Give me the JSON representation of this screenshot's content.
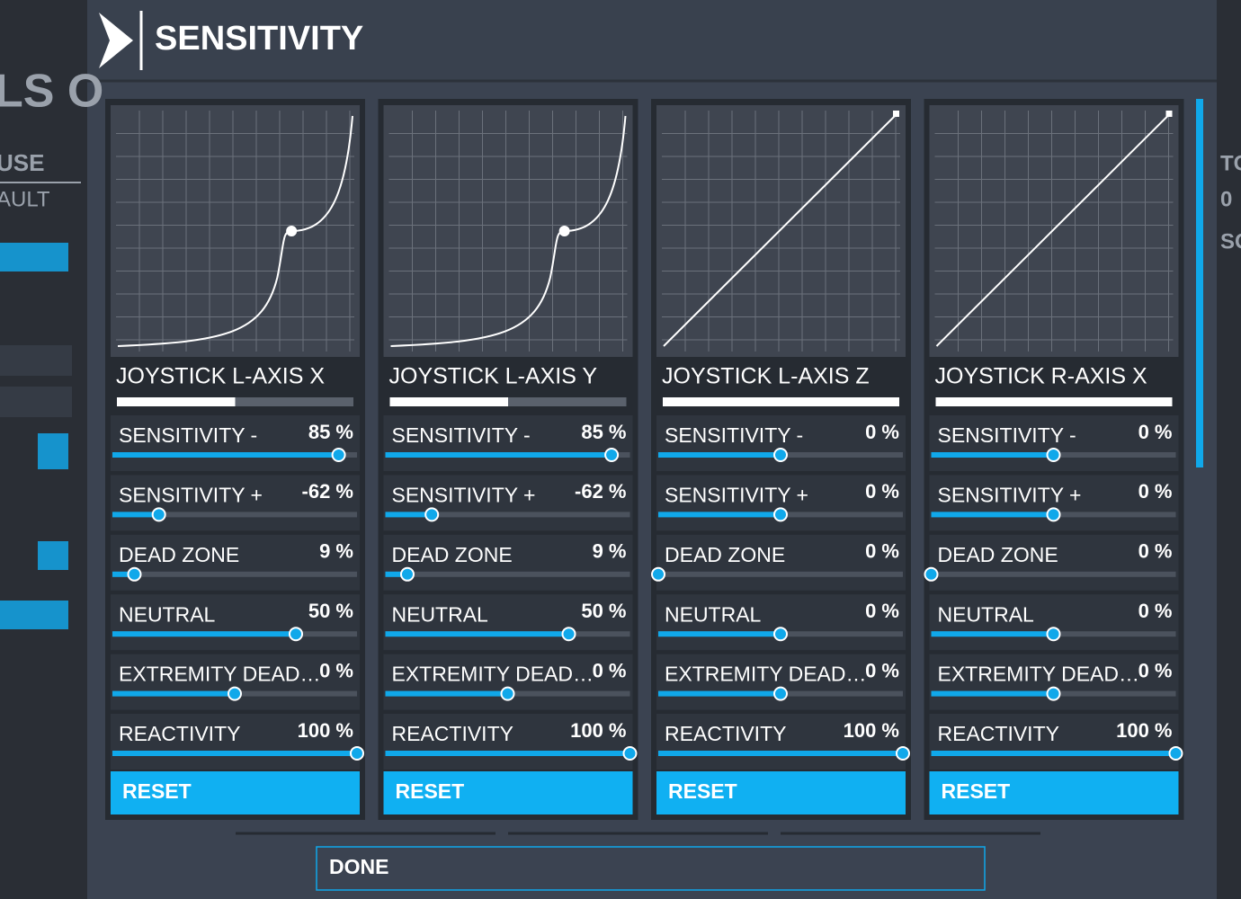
{
  "background": {
    "left_texts": [
      "LS O",
      "USE",
      "AULT"
    ],
    "right_texts": [
      "TC",
      "0",
      "SC"
    ]
  },
  "header": {
    "title": "SENSITIVITY"
  },
  "panels": [
    {
      "name": "JOYSTICK L-AXIS X",
      "input": 50,
      "settings": [
        {
          "label": "SENSITIVITY -",
          "value": 85,
          "value_label": "85 %",
          "range": [
            -100,
            100
          ]
        },
        {
          "label": "SENSITIVITY +",
          "value": -62,
          "value_label": "-62 %",
          "range": [
            -100,
            100
          ]
        },
        {
          "label": "DEAD ZONE",
          "value": 9,
          "value_label": "9 %",
          "range": [
            0,
            100
          ]
        },
        {
          "label": "NEUTRAL",
          "value": 50,
          "value_label": "50 %",
          "range": [
            -100,
            100
          ]
        },
        {
          "label": "EXTREMITY DEAD…",
          "value": 0,
          "value_label": "0 %",
          "range": [
            -100,
            100
          ]
        },
        {
          "label": "REACTIVITY",
          "value": 100,
          "value_label": "100 %",
          "range": [
            0,
            100
          ]
        }
      ],
      "reset": "RESET"
    },
    {
      "name": "JOYSTICK L-AXIS Y",
      "input": 50,
      "settings": [
        {
          "label": "SENSITIVITY -",
          "value": 85,
          "value_label": "85 %",
          "range": [
            -100,
            100
          ]
        },
        {
          "label": "SENSITIVITY +",
          "value": -62,
          "value_label": "-62 %",
          "range": [
            -100,
            100
          ]
        },
        {
          "label": "DEAD ZONE",
          "value": 9,
          "value_label": "9 %",
          "range": [
            0,
            100
          ]
        },
        {
          "label": "NEUTRAL",
          "value": 50,
          "value_label": "50 %",
          "range": [
            -100,
            100
          ]
        },
        {
          "label": "EXTREMITY DEAD…",
          "value": 0,
          "value_label": "0 %",
          "range": [
            -100,
            100
          ]
        },
        {
          "label": "REACTIVITY",
          "value": 100,
          "value_label": "100 %",
          "range": [
            0,
            100
          ]
        }
      ],
      "reset": "RESET"
    },
    {
      "name": "JOYSTICK L-AXIS Z",
      "input": 100,
      "settings": [
        {
          "label": "SENSITIVITY -",
          "value": 0,
          "value_label": "0 %",
          "range": [
            -100,
            100
          ]
        },
        {
          "label": "SENSITIVITY +",
          "value": 0,
          "value_label": "0 %",
          "range": [
            -100,
            100
          ]
        },
        {
          "label": "DEAD ZONE",
          "value": 0,
          "value_label": "0 %",
          "range": [
            0,
            100
          ]
        },
        {
          "label": "NEUTRAL",
          "value": 0,
          "value_label": "0 %",
          "range": [
            -100,
            100
          ]
        },
        {
          "label": "EXTREMITY DEAD…",
          "value": 0,
          "value_label": "0 %",
          "range": [
            -100,
            100
          ]
        },
        {
          "label": "REACTIVITY",
          "value": 100,
          "value_label": "100 %",
          "range": [
            0,
            100
          ]
        }
      ],
      "reset": "RESET"
    },
    {
      "name": "JOYSTICK R-AXIS X",
      "input": 100,
      "settings": [
        {
          "label": "SENSITIVITY -",
          "value": 0,
          "value_label": "0 %",
          "range": [
            -100,
            100
          ]
        },
        {
          "label": "SENSITIVITY +",
          "value": 0,
          "value_label": "0 %",
          "range": [
            -100,
            100
          ]
        },
        {
          "label": "DEAD ZONE",
          "value": 0,
          "value_label": "0 %",
          "range": [
            0,
            100
          ]
        },
        {
          "label": "NEUTRAL",
          "value": 0,
          "value_label": "0 %",
          "range": [
            -100,
            100
          ]
        },
        {
          "label": "EXTREMITY DEAD…",
          "value": 0,
          "value_label": "0 %",
          "range": [
            -100,
            100
          ]
        },
        {
          "label": "REACTIVITY",
          "value": 100,
          "value_label": "100 %",
          "range": [
            0,
            100
          ]
        }
      ],
      "reset": "RESET"
    }
  ],
  "done": "DONE"
}
